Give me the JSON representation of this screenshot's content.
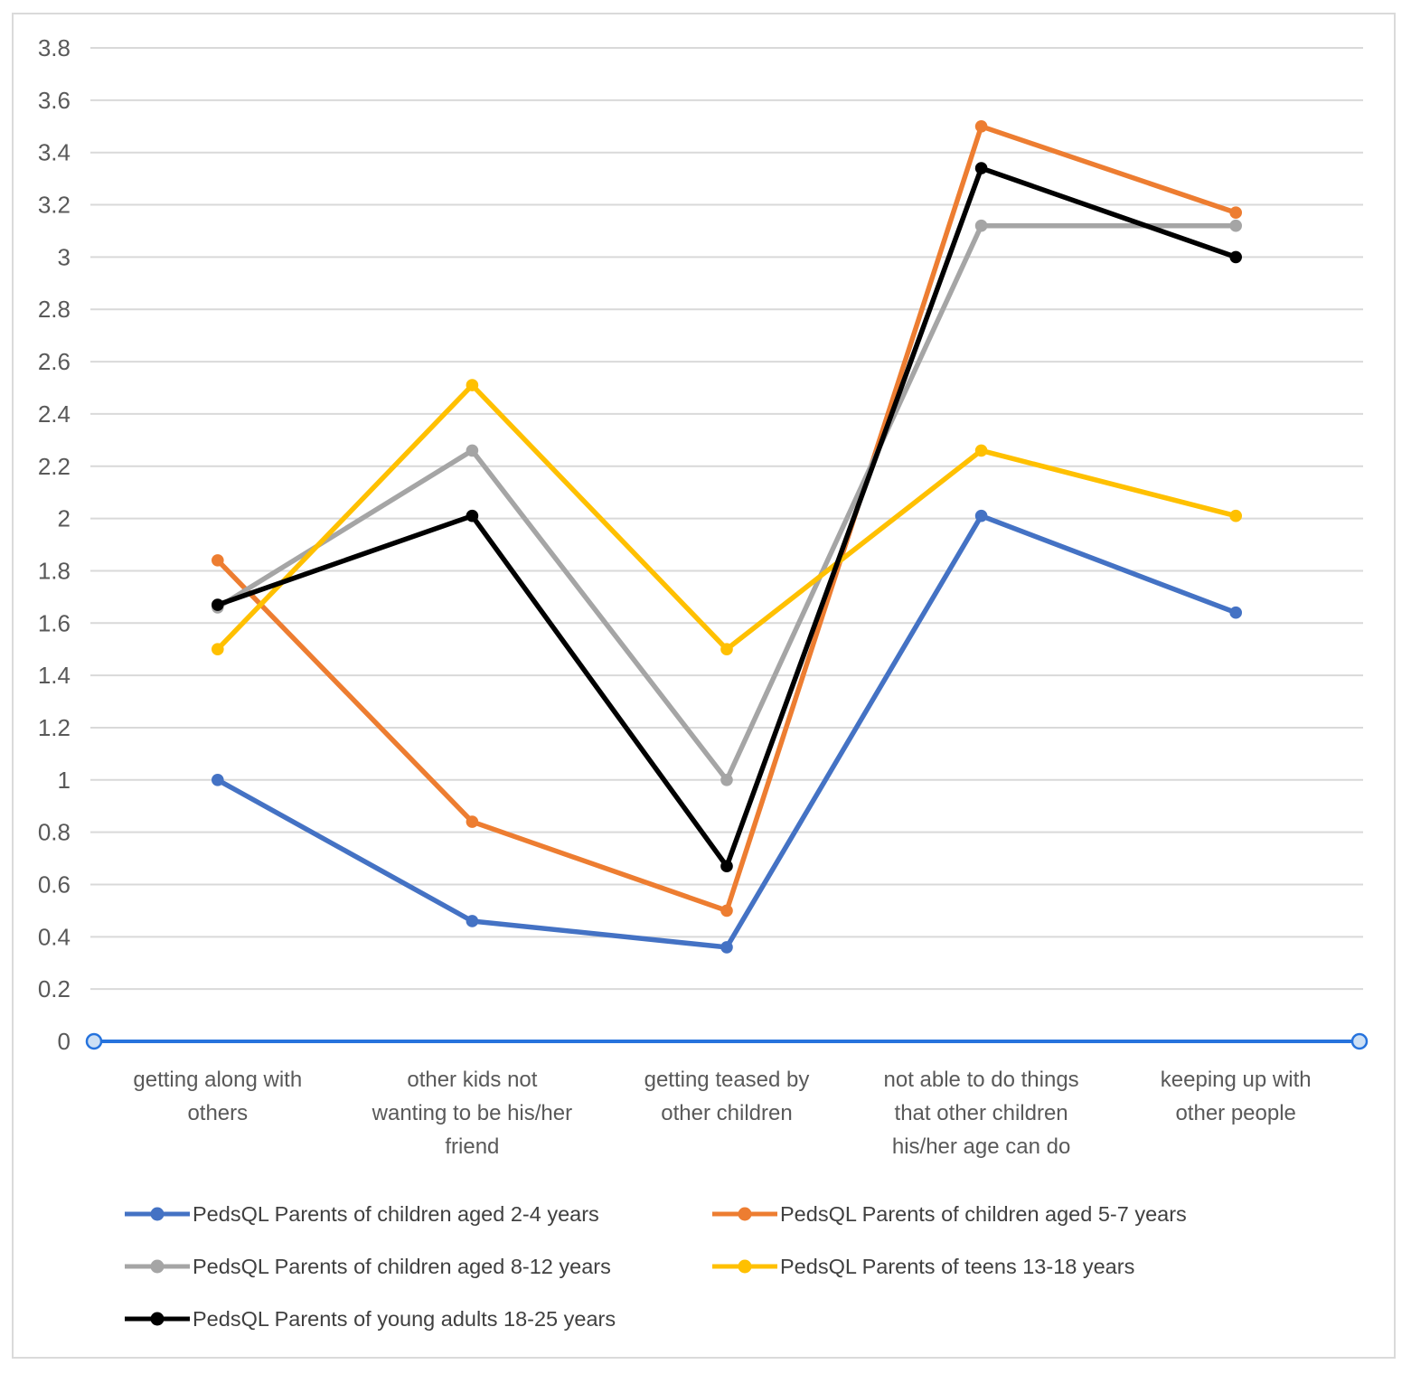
{
  "chart_data": {
    "type": "line",
    "title": "",
    "categories": [
      "getting along with others",
      "other kids not wanting to be his/her friend",
      "getting teased by other children",
      "not able to do things that other children his/her age can do",
      "keeping up with other people"
    ],
    "categories_wrapped": [
      [
        "getting along with",
        "others"
      ],
      [
        "other kids not",
        "wanting to be his/her",
        "friend"
      ],
      [
        "getting teased by",
        "other children"
      ],
      [
        "not able to do things",
        "that other children",
        "his/her age can do"
      ],
      [
        "keeping up with",
        "other people"
      ]
    ],
    "series": [
      {
        "name": "PedsQL Parents of children aged 2-4 years",
        "color": "#4472C4",
        "marker": "circle",
        "values": [
          1.0,
          0.46,
          0.36,
          2.01,
          1.64
        ]
      },
      {
        "name": "PedsQL Parents of children aged 5-7 years",
        "color": "#ED7D31",
        "marker": "circle",
        "values": [
          1.84,
          0.84,
          0.5,
          3.5,
          3.17
        ]
      },
      {
        "name": "PedsQL Parents of children aged 8-12 years",
        "color": "#A5A5A5",
        "marker": "circle",
        "values": [
          1.66,
          2.26,
          1.0,
          3.12,
          3.12
        ]
      },
      {
        "name": "PedsQL Parents of teens 13-18 years",
        "color": "#FFC000",
        "marker": "circle",
        "values": [
          1.5,
          2.51,
          1.5,
          2.26,
          2.01
        ]
      },
      {
        "name": "PedsQL Parents of young adults 18-25 years",
        "color": "#000000",
        "marker": "circle",
        "values": [
          1.67,
          2.01,
          0.67,
          3.34,
          3.0
        ]
      }
    ],
    "y_axis": {
      "min": 0,
      "max": 3.8,
      "step": 0.2,
      "tick_labels": [
        "0",
        "0.2",
        "0.4",
        "0.6",
        "0.8",
        "1",
        "1.2",
        "1.4",
        "1.6",
        "1.8",
        "2",
        "2.2",
        "2.4",
        "2.6",
        "2.8",
        "3",
        "3.2",
        "3.4",
        "3.6",
        "3.8"
      ]
    },
    "x_axis": {
      "baseline_color": "#2673DD",
      "baseline_endpoint_marker": "open-circle",
      "baseline_endpoint_fill": "#CDE0F5"
    },
    "gridlines": true,
    "grid_color": "#D9D9D9",
    "axis_label_color": "#595959",
    "legend_text_color": "#404040",
    "legend_position": "bottom",
    "legend_columns": 2
  }
}
